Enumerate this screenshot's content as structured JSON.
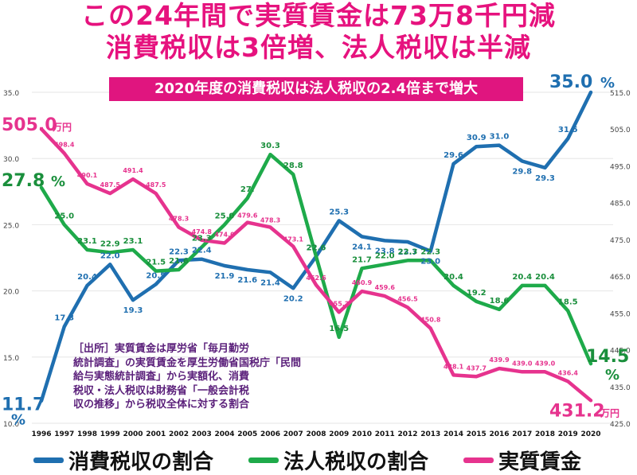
{
  "headline": {
    "line1": "この24年間で実質賃金は73万8千円減",
    "line2": "消費税収は3倍増、法人税収は半減"
  },
  "subtitle": "2020年度の消費税収は法人税収の2.4倍まで増大",
  "source_note": [
    "［出所］実質賃金は厚労省「毎月勤労",
    "統計調査」の実質賃金を厚生労働省国税庁「民間",
    "給与実態統計調査」から実額化、消費",
    "税収・法人税収は財務省「一般会計税",
    "収の推移」から税収全体に対する割合"
  ],
  "legend": [
    {
      "label": "消費税収の割合",
      "color": "#1f6fb0"
    },
    {
      "label": "法人税収の割合",
      "color": "#1eaa4a"
    },
    {
      "label": "実質賃金",
      "color": "#e6338e"
    }
  ],
  "chart_data": {
    "type": "line",
    "categories": [
      "1996",
      "1997",
      "1998",
      "1999",
      "2000",
      "2001",
      "2002",
      "2003",
      "2004",
      "2005",
      "2006",
      "2007",
      "2008",
      "2009",
      "2010",
      "2011",
      "2012",
      "2013",
      "2014",
      "2015",
      "2016",
      "2017",
      "2018",
      "2019",
      "2020"
    ],
    "left_axis": {
      "ylim": [
        10.0,
        35.0
      ],
      "ticks": [
        "35.0",
        "30.0",
        "25.0",
        "20.0",
        "15.0",
        "10.0"
      ]
    },
    "right_axis": {
      "ylim": [
        425.0,
        515.0
      ],
      "ticks": [
        "515.0",
        "505.0",
        "495.0",
        "485.0",
        "475.0",
        "465.0",
        "455.0",
        "445.0",
        "435.0",
        "425.0"
      ]
    },
    "series": [
      {
        "name": "消費税収の割合",
        "axis": "left",
        "color": "#1f6fb0",
        "values": [
          11.7,
          17.3,
          20.4,
          22.0,
          19.3,
          20.5,
          22.3,
          22.4,
          21.9,
          21.6,
          21.4,
          20.2,
          22.6,
          25.3,
          24.1,
          23.8,
          23.7,
          23.0,
          29.6,
          30.9,
          31.0,
          29.8,
          29.3,
          31.5,
          35.0
        ],
        "labels": [
          "11.7",
          "17.3",
          "20.4",
          "22.0",
          "19.3",
          "20.5",
          "22.3",
          "22.4",
          "21.9",
          "21.6",
          "21.4",
          "20.2",
          "22.6",
          "25.3",
          "24.1",
          "23.8",
          "23.7",
          "23.0",
          "29.6",
          "30.9",
          "31.0",
          "29.8",
          "29.3",
          "31.5",
          "35.0"
        ],
        "start_label": "11.7",
        "start_unit": "%",
        "end_label": "35.0",
        "end_unit": "%"
      },
      {
        "name": "法人税収の割合",
        "axis": "left",
        "color": "#1eaa4a",
        "values": [
          27.8,
          25.0,
          23.1,
          22.9,
          23.1,
          21.5,
          21.6,
          23.3,
          25.0,
          27.0,
          30.3,
          28.8,
          22.6,
          16.5,
          21.7,
          22.0,
          22.3,
          22.3,
          20.4,
          19.2,
          18.6,
          20.4,
          20.4,
          18.5,
          14.5
        ],
        "labels": [
          "27.8",
          "25.0",
          "23.1",
          "22.9",
          "23.1",
          "21.5",
          "21.6",
          "23.3",
          "25.0",
          "27.",
          "30.3",
          "28.8",
          "22.6",
          "16.5",
          "21.7",
          "22.0",
          "22.3",
          "22.3",
          "20.4",
          "19.2",
          "18.6",
          "20.4",
          "20.4",
          "18.5",
          "14.5"
        ],
        "start_label": "27.8",
        "start_unit": "%",
        "end_label": "14.5",
        "end_unit": "%"
      },
      {
        "name": "実質賃金",
        "axis": "right",
        "color": "#e6338e",
        "values": [
          505.0,
          498.4,
          490.1,
          487.5,
          491.4,
          487.5,
          478.3,
          474.8,
          474.0,
          479.6,
          478.3,
          473.1,
          462.6,
          455.2,
          460.9,
          459.6,
          456.5,
          450.8,
          438.1,
          437.7,
          439.9,
          439.0,
          439.0,
          436.4,
          431.2
        ],
        "labels": [
          "505.0",
          "498.4",
          "490.1",
          "487.5",
          "491.4",
          "487.5",
          "478.3",
          "474.8",
          "474.0",
          "479.6",
          "478.3",
          "473.1",
          "462.6",
          "455.2",
          "460.9",
          "459.6",
          "456.5",
          "450.8",
          "438.1",
          "437.7",
          "439.9",
          "439.0",
          "439.0",
          "436.4",
          "431.2"
        ],
        "start_label": "505.0",
        "start_unit": "万円",
        "end_label": "431.2",
        "end_unit": "万円"
      }
    ]
  }
}
